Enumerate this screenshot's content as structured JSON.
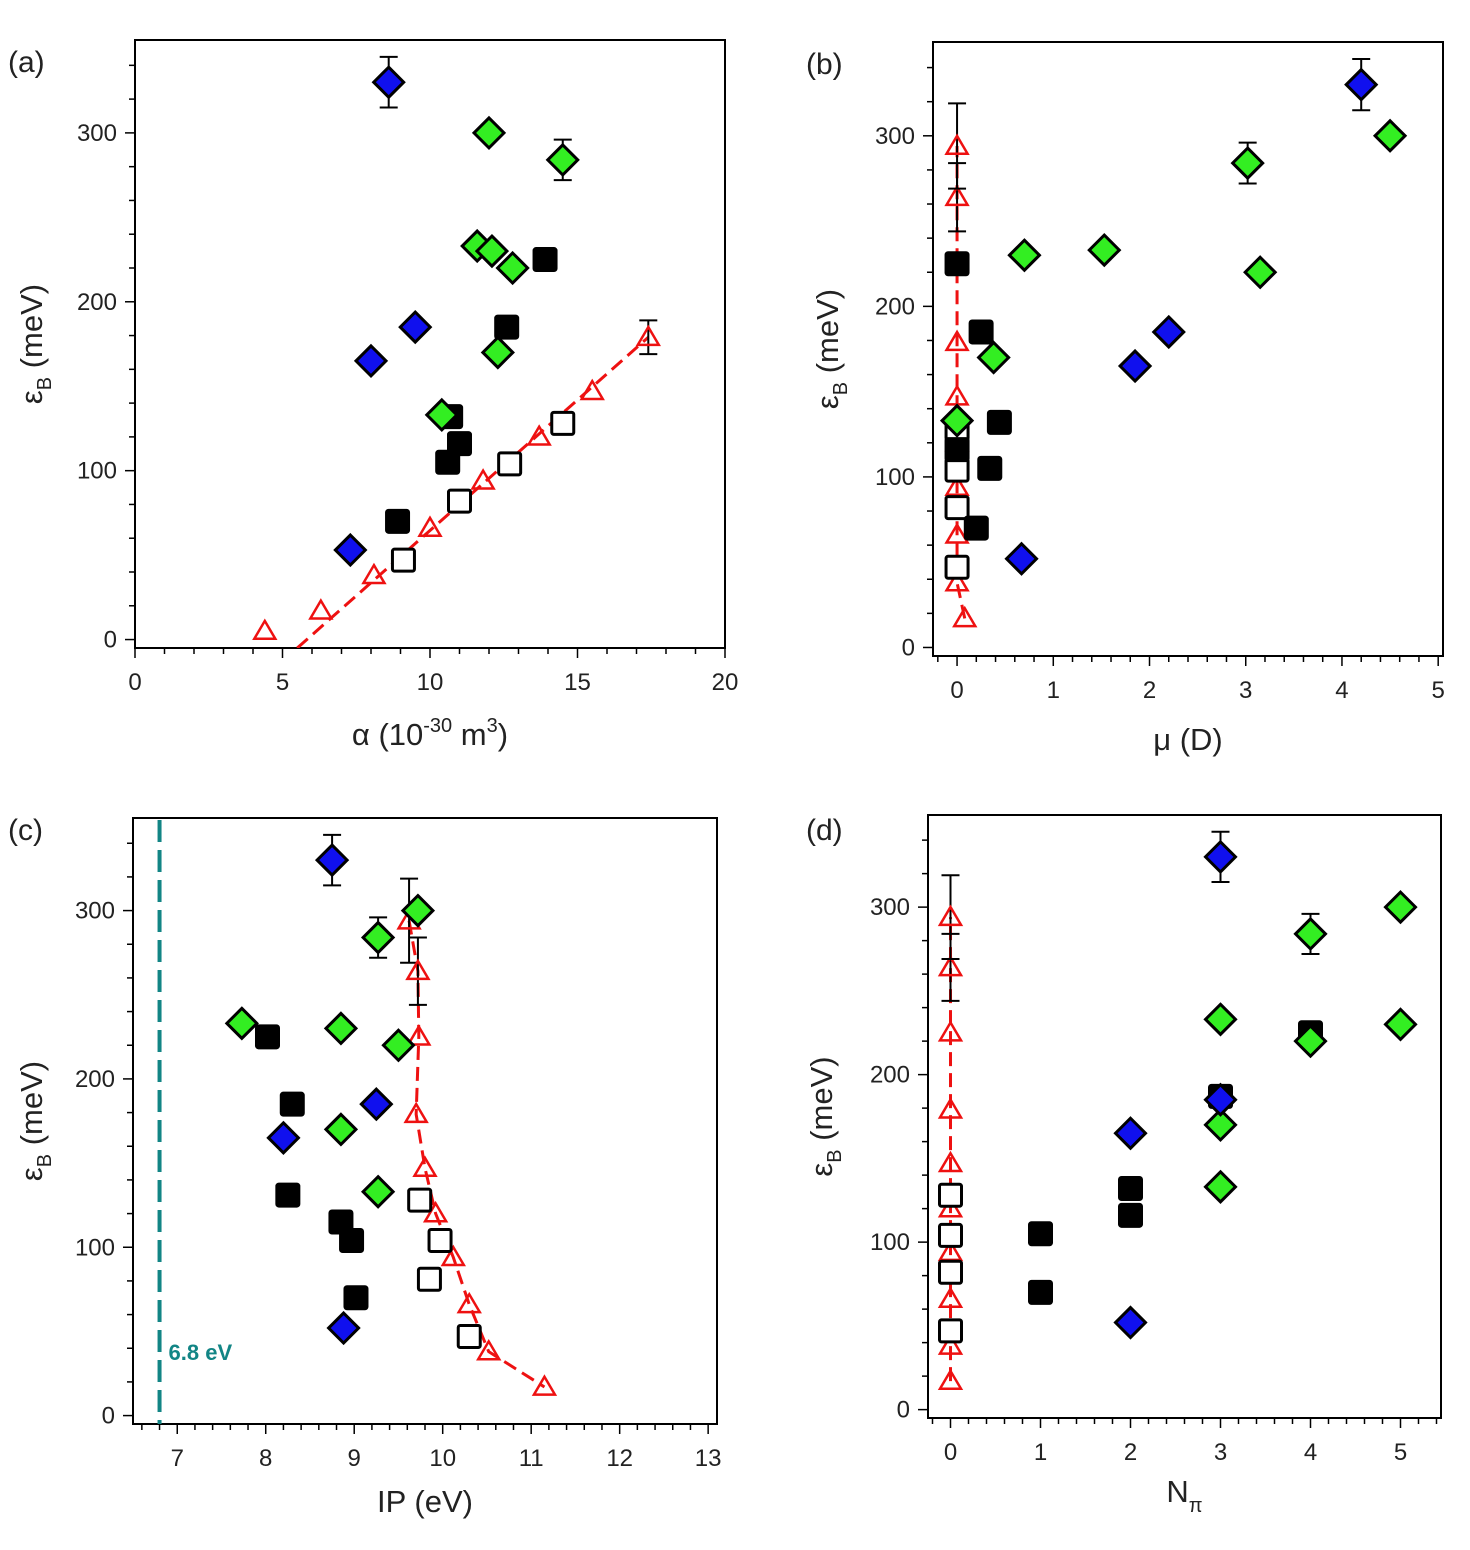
{
  "colors": {
    "blue": "#1010ee",
    "green": "#33ee22",
    "black": "#000000",
    "red": "#ee1111",
    "teal": "#128585"
  },
  "chart_data": [
    {
      "type": "scatter",
      "panel_label": "(a)",
      "xlabel": "α (10⁻³⁰ m³)",
      "ylabel": "εB (meV)",
      "xlim": [
        0,
        20
      ],
      "ylim": [
        -5,
        355
      ],
      "xticks": [
        0,
        5,
        10,
        15,
        20
      ],
      "yticks": [
        0,
        100,
        200,
        300
      ],
      "series": [
        {
          "marker": "diamond-blue",
          "x": [
            8.6,
            9.5,
            8.0,
            7.3
          ],
          "y": [
            330,
            185,
            165,
            53
          ],
          "err": [
            15,
            0,
            0,
            0
          ]
        },
        {
          "marker": "diamond-green",
          "x": [
            12.0,
            14.5,
            11.6,
            12.1,
            12.8,
            12.3,
            10.4
          ],
          "y": [
            300,
            284,
            233,
            230,
            220,
            170,
            133
          ],
          "err": [
            0,
            12,
            0,
            0,
            0,
            0,
            0
          ]
        },
        {
          "marker": "square-filled",
          "x": [
            13.9,
            12.6,
            10.7,
            11.0,
            10.6,
            8.9
          ],
          "y": [
            225,
            185,
            132,
            116,
            105,
            70
          ],
          "err": [
            0,
            0,
            0,
            0,
            0,
            0
          ]
        },
        {
          "marker": "square-open",
          "x": [
            14.5,
            12.7,
            11.0,
            9.1
          ],
          "y": [
            128,
            104,
            82,
            47
          ],
          "err": [
            0,
            0,
            0,
            0
          ]
        },
        {
          "marker": "triangle-open",
          "x": [
            4.4,
            6.3,
            8.1,
            10.0,
            11.8,
            13.7,
            15.5,
            17.4
          ],
          "y": [
            5,
            17,
            38,
            66,
            94,
            120,
            147,
            179
          ],
          "err": [
            0,
            0,
            0,
            0,
            0,
            0,
            0,
            10
          ]
        }
      ],
      "fit_line": {
        "x": [
          5.5,
          17.4
        ],
        "y": [
          -5,
          179
        ]
      }
    },
    {
      "type": "scatter",
      "panel_label": "(b)",
      "xlabel": "μ (D)",
      "ylabel": "εB (meV)",
      "xlim": [
        -0.25,
        5.05
      ],
      "ylim": [
        -5,
        355
      ],
      "xticks": [
        0,
        1,
        2,
        3,
        4,
        5
      ],
      "yticks": [
        0,
        100,
        200,
        300
      ],
      "series": [
        {
          "marker": "diamond-blue",
          "x": [
            4.2,
            2.2,
            1.85,
            0.67
          ],
          "y": [
            330,
            185,
            165,
            52
          ],
          "err": [
            15,
            0,
            0,
            0
          ]
        },
        {
          "marker": "diamond-green",
          "x": [
            4.5,
            3.02,
            3.15,
            1.53,
            0.7,
            0.38,
            0.0
          ],
          "y": [
            300,
            284,
            220,
            233,
            230,
            170,
            133
          ],
          "err": [
            0,
            12,
            0,
            0,
            0,
            0,
            0
          ]
        },
        {
          "marker": "square-filled",
          "x": [
            0.0,
            0.25,
            0.44,
            0.34,
            0.2,
            0.0
          ],
          "y": [
            225,
            185,
            132,
            105,
            70,
            116
          ],
          "err": [
            0,
            0,
            0,
            0,
            0,
            0
          ]
        },
        {
          "marker": "square-open",
          "x": [
            0.0,
            0.0,
            0.0,
            0.0
          ],
          "y": [
            128,
            104,
            82,
            47
          ],
          "err": [
            0,
            0,
            0,
            0
          ]
        },
        {
          "marker": "triangle-open",
          "x": [
            0.08,
            0.0,
            0.0,
            0.0,
            0.0,
            0.0,
            0.0,
            0.0,
            0.0
          ],
          "y": [
            17,
            38,
            66,
            94,
            120,
            147,
            179,
            264,
            294
          ],
          "err": [
            0,
            0,
            0,
            0,
            0,
            0,
            0,
            20,
            25
          ]
        }
      ],
      "fit_line": {
        "x": [
          0.08,
          0.0,
          0.0
        ],
        "y": [
          17,
          38,
          294
        ]
      }
    },
    {
      "type": "scatter",
      "panel_label": "(c)",
      "xlabel": "IP (eV)",
      "ylabel": "εB (meV)",
      "xlim": [
        6.5,
        13.1
      ],
      "ylim": [
        -5,
        355
      ],
      "xticks": [
        7,
        8,
        9,
        10,
        11,
        12,
        13
      ],
      "yticks": [
        0,
        100,
        200,
        300
      ],
      "series": [
        {
          "marker": "diamond-blue",
          "x": [
            8.75,
            9.25,
            8.2,
            8.88
          ],
          "y": [
            330,
            185,
            165,
            52
          ],
          "err": [
            15,
            0,
            0,
            0
          ]
        },
        {
          "marker": "diamond-green",
          "x": [
            9.72,
            9.27,
            7.73,
            8.85,
            9.5,
            8.85,
            9.27
          ],
          "y": [
            300,
            284,
            233,
            230,
            220,
            170,
            133
          ],
          "err": [
            0,
            12,
            0,
            0,
            0,
            0,
            0
          ]
        },
        {
          "marker": "square-filled",
          "x": [
            8.02,
            8.3,
            8.25,
            8.85,
            8.97,
            9.02
          ],
          "y": [
            225,
            185,
            131,
            115,
            104,
            70
          ],
          "err": [
            0,
            0,
            0,
            0,
            0,
            0
          ]
        },
        {
          "marker": "square-open",
          "x": [
            9.74,
            9.85,
            9.97,
            10.3
          ],
          "y": [
            128,
            81,
            104,
            47
          ],
          "err": [
            0,
            0,
            0,
            0
          ]
        },
        {
          "marker": "triangle-open",
          "x": [
            9.62,
            9.72,
            9.73,
            9.7,
            9.8,
            9.92,
            10.12,
            10.3,
            10.52,
            11.15
          ],
          "y": [
            294,
            264,
            225,
            179,
            147,
            120,
            94,
            66,
            38,
            17
          ],
          "err": [
            25,
            20,
            0,
            0,
            0,
            0,
            0,
            0,
            0,
            0
          ]
        }
      ],
      "fit_line": {
        "x": [
          9.62,
          9.72,
          9.73,
          9.7,
          9.8,
          9.92,
          10.12,
          10.3,
          10.52,
          11.15
        ],
        "y": [
          294,
          264,
          225,
          179,
          147,
          120,
          94,
          66,
          38,
          17
        ]
      },
      "reference_line": {
        "x": 6.8,
        "label": "6.8 eV"
      }
    },
    {
      "type": "scatter",
      "panel_label": "(d)",
      "xlabel": "Nπ",
      "ylabel": "εB (meV)",
      "xlim": [
        -0.25,
        5.45
      ],
      "ylim": [
        -5,
        355
      ],
      "xticks": [
        0,
        1,
        2,
        3,
        4,
        5
      ],
      "yticks": [
        0,
        100,
        200,
        300
      ],
      "series": [
        {
          "marker": "diamond-blue",
          "x": [
            3,
            3,
            2,
            2
          ],
          "y": [
            330,
            185,
            165,
            52
          ],
          "err": [
            15,
            0,
            0,
            0
          ]
        },
        {
          "marker": "diamond-green",
          "x": [
            5,
            4,
            3,
            5,
            4,
            3,
            3
          ],
          "y": [
            300,
            284,
            233,
            230,
            220,
            170,
            133
          ],
          "err": [
            0,
            12,
            0,
            0,
            0,
            0,
            0
          ]
        },
        {
          "marker": "square-filled",
          "x": [
            4,
            3,
            2,
            2,
            1,
            1
          ],
          "y": [
            225,
            187,
            132,
            116,
            105,
            70
          ],
          "err": [
            0,
            0,
            0,
            0,
            0,
            0
          ]
        },
        {
          "marker": "square-open",
          "x": [
            0,
            0,
            0,
            0
          ],
          "y": [
            128,
            104,
            82,
            47
          ],
          "err": [
            0,
            0,
            0,
            0
          ]
        },
        {
          "marker": "triangle-open",
          "x": [
            0,
            0,
            0,
            0,
            0,
            0,
            0,
            0,
            0,
            0
          ],
          "y": [
            17,
            38,
            66,
            94,
            120,
            147,
            179,
            225,
            264,
            294
          ],
          "err": [
            0,
            0,
            0,
            0,
            0,
            0,
            0,
            0,
            20,
            25
          ]
        }
      ],
      "fit_line": {
        "x": [
          0,
          0
        ],
        "y": [
          17,
          294
        ]
      }
    }
  ]
}
